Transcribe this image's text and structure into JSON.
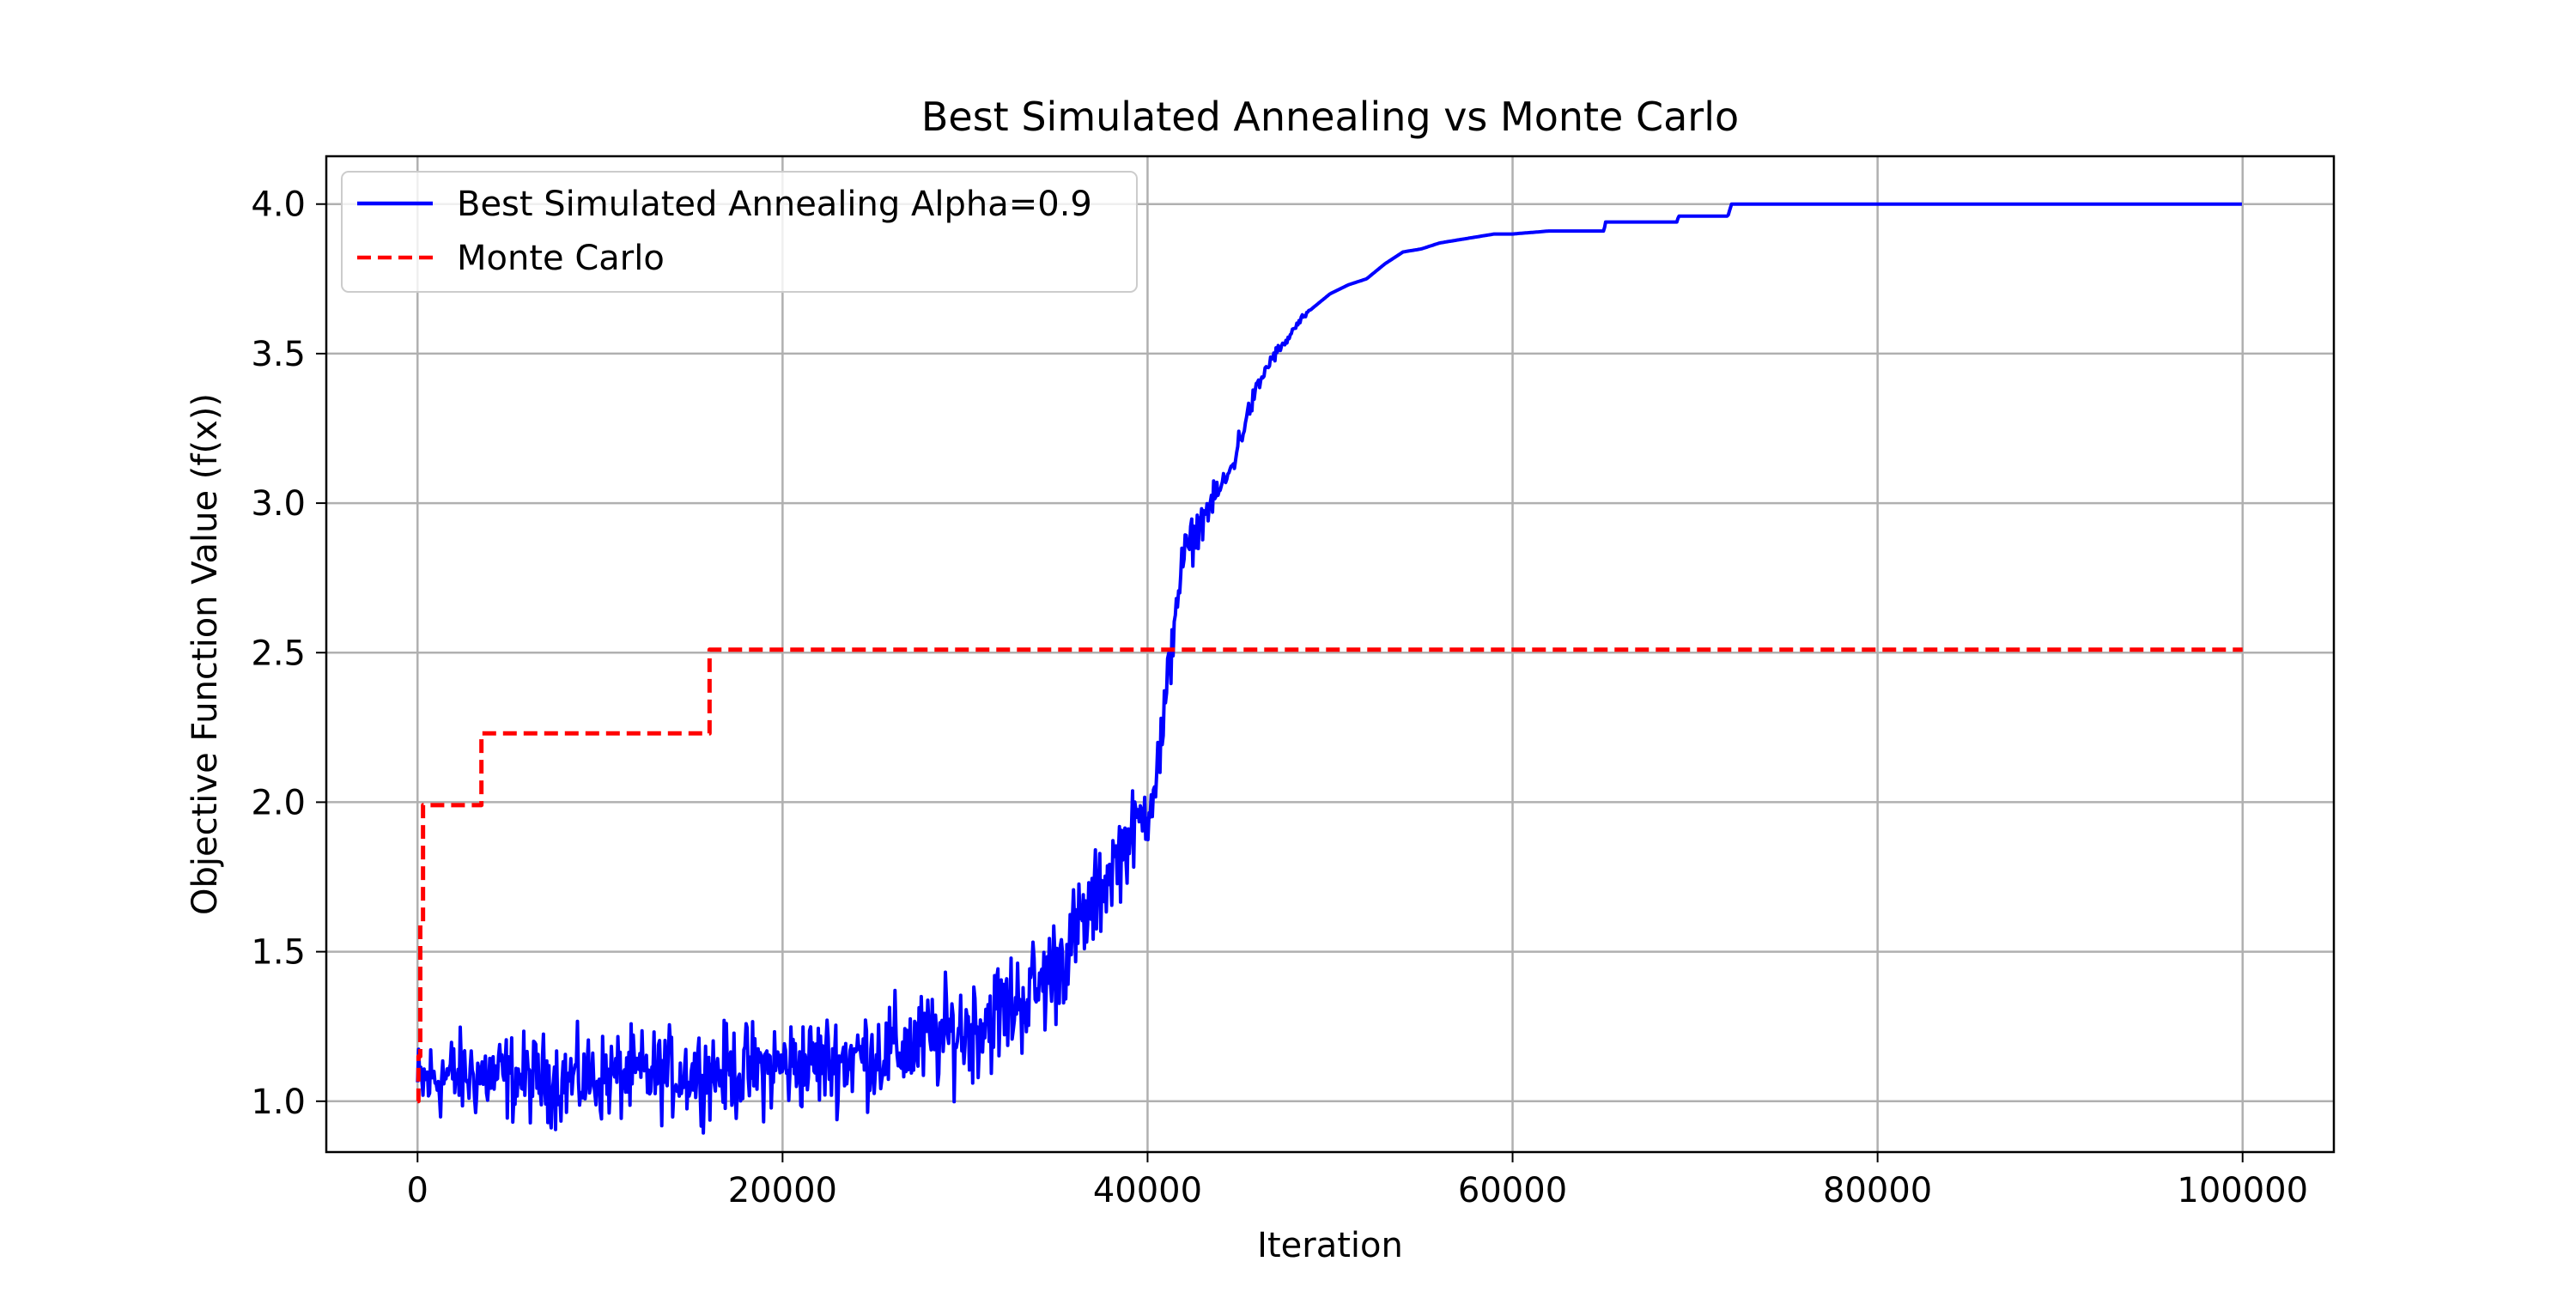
{
  "chart_data": {
    "type": "line",
    "title": "Best Simulated Annealing vs Monte Carlo",
    "xlabel": "Iteration",
    "ylabel": "Objective Function Value (f(x))",
    "xlim": [
      -5000,
      105000
    ],
    "ylim": [
      0.83,
      4.16
    ],
    "xticks": [
      0,
      20000,
      40000,
      60000,
      80000,
      100000
    ],
    "xtick_labels": [
      "0",
      "20000",
      "40000",
      "60000",
      "80000",
      "100000"
    ],
    "yticks": [
      1.0,
      1.5,
      2.0,
      2.5,
      3.0,
      3.5,
      4.0
    ],
    "ytick_labels": [
      "1.0",
      "1.5",
      "2.0",
      "2.5",
      "3.0",
      "3.5",
      "4.0"
    ],
    "grid": true,
    "legend_position": "top-left",
    "series": [
      {
        "name": "Best Simulated Annealing Alpha=0.9",
        "color": "#0000ff",
        "style": "solid",
        "x": [
          0,
          1000,
          3000,
          5000,
          8000,
          10000,
          13000,
          16000,
          18000,
          20000,
          22000,
          24000,
          26000,
          28000,
          30000,
          32000,
          34000,
          35000,
          36000,
          37000,
          38000,
          39000,
          40000,
          40500,
          41000,
          41500,
          42000,
          42500,
          43000,
          43500,
          44000,
          44500,
          45000,
          45500,
          46000,
          46500,
          47000,
          47500,
          48000,
          48500,
          49000,
          50000,
          51000,
          52000,
          53000,
          54000,
          55000,
          56000,
          57000,
          58000,
          59000,
          60000,
          62000,
          65000,
          65100,
          69000,
          69100,
          71800,
          72000,
          80000,
          90000,
          100000
        ],
        "y": [
          1.05,
          1.08,
          1.09,
          1.08,
          1.07,
          1.08,
          1.09,
          1.1,
          1.1,
          1.12,
          1.13,
          1.15,
          1.17,
          1.2,
          1.24,
          1.3,
          1.38,
          1.45,
          1.55,
          1.65,
          1.78,
          1.88,
          1.98,
          2.1,
          2.3,
          2.65,
          2.82,
          2.88,
          2.95,
          3.0,
          3.05,
          3.1,
          3.2,
          3.3,
          3.38,
          3.45,
          3.5,
          3.53,
          3.58,
          3.62,
          3.65,
          3.7,
          3.73,
          3.75,
          3.8,
          3.84,
          3.85,
          3.87,
          3.88,
          3.89,
          3.9,
          3.9,
          3.91,
          3.91,
          3.94,
          3.94,
          3.96,
          3.96,
          4.0,
          4.0,
          4.0,
          4.0
        ],
        "noise_amplitude": [
          0.12,
          0.12,
          0.12,
          0.12,
          0.12,
          0.12,
          0.12,
          0.12,
          0.13,
          0.13,
          0.13,
          0.13,
          0.14,
          0.14,
          0.15,
          0.15,
          0.15,
          0.15,
          0.14,
          0.13,
          0.12,
          0.11,
          0.1,
          0.1,
          0.12,
          0.08,
          0.07,
          0.06,
          0.05,
          0.04,
          0.04,
          0.04,
          0.04,
          0.03,
          0.03,
          0.02,
          0.02,
          0.01,
          0.01,
          0.01,
          0,
          0,
          0,
          0,
          0,
          0,
          0,
          0,
          0,
          0,
          0,
          0,
          0,
          0,
          0,
          0,
          0,
          0,
          0,
          0,
          0,
          0
        ]
      },
      {
        "name": "Monte Carlo",
        "color": "#ff0000",
        "style": "dashed",
        "step": true,
        "x": [
          0,
          50,
          150,
          300,
          3500,
          16000,
          100000
        ],
        "y": [
          1.0,
          1.15,
          1.6,
          1.99,
          2.23,
          2.51,
          2.51
        ]
      }
    ]
  }
}
